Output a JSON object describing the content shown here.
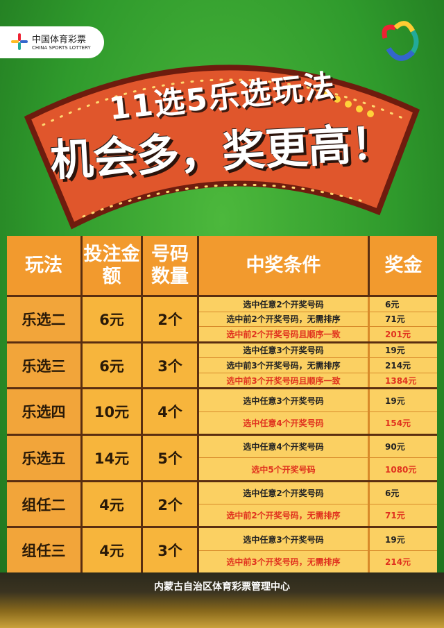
{
  "header": {
    "logo": "中国体育彩票",
    "logo_en": "CHINA SPORTS LOTTERY",
    "title": "11选5乐选玩法",
    "subtitle": "机会多，奖更高！"
  },
  "table": {
    "headers": [
      "玩法",
      "投注金额",
      "号码数量",
      "中奖条件",
      "奖金"
    ],
    "rows": [
      {
        "name": "乐选二",
        "cost": "6元",
        "count": "2个",
        "conditions": [
          {
            "text": "选中任意2个开奖号码",
            "prize": "6元"
          },
          {
            "text": "选中前2个开奖号码，无需排序",
            "prize": "71元"
          },
          {
            "text": "选中前2个开奖号码且顺序一致",
            "prize": "201元"
          }
        ]
      },
      {
        "name": "乐选三",
        "cost": "6元",
        "count": "3个",
        "conditions": [
          {
            "text": "选中任意3个开奖号码",
            "prize": "19元"
          },
          {
            "text": "选中前3个开奖号码，无需排序",
            "prize": "214元"
          },
          {
            "text": "选中前3个开奖号码且顺序一致",
            "prize": "1384元"
          }
        ]
      },
      {
        "name": "乐选四",
        "cost": "10元",
        "count": "4个",
        "conditions": [
          {
            "text": "选中任意3个开奖号码",
            "prize": "19元"
          },
          {
            "text": "选中任意4个开奖号码",
            "prize": "154元"
          }
        ]
      },
      {
        "name": "乐选五",
        "cost": "14元",
        "count": "5个",
        "conditions": [
          {
            "text": "选中任意4个开奖号码",
            "prize": "90元"
          },
          {
            "text": "选中5个开奖号码",
            "prize": "1080元"
          }
        ]
      },
      {
        "name": "组任二",
        "cost": "4元",
        "count": "2个",
        "conditions": [
          {
            "text": "选中任意2个开奖号码",
            "prize": "6元"
          },
          {
            "text": "选中前2个开奖号码，无需排序",
            "prize": "71元"
          }
        ]
      },
      {
        "name": "组任三",
        "cost": "4元",
        "count": "3个",
        "conditions": [
          {
            "text": "选中任意3个开奖号码",
            "prize": "19元"
          },
          {
            "text": "选中前3个开奖号码，无需排序",
            "prize": "214元"
          }
        ]
      }
    ]
  },
  "footer": {
    "text": "内蒙古自治区体育彩票管理中心"
  }
}
